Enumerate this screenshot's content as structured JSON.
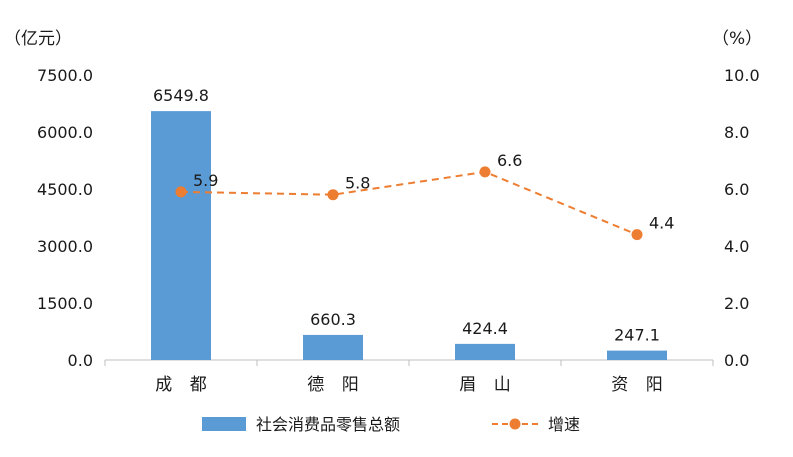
{
  "chart_data": {
    "type": "bar+line",
    "categories": [
      "成 都",
      "德 阳",
      "眉 山",
      "资 阳"
    ],
    "series": [
      {
        "name": "社会消费品零售总额",
        "type": "bar",
        "axis": "left",
        "values": [
          6549.8,
          660.3,
          424.4,
          247.1
        ],
        "data_labels": [
          "6549.8",
          "660.3",
          "424.4",
          "247.1"
        ],
        "color": "#5b9bd5"
      },
      {
        "name": "增速",
        "type": "line",
        "axis": "right",
        "style": "dashed",
        "values": [
          5.9,
          5.8,
          6.6,
          4.4
        ],
        "data_labels": [
          "5.9",
          "5.8",
          "6.6",
          "4.4"
        ],
        "color": "#ed7d31"
      }
    ],
    "y_left": {
      "unit": "（亿元）",
      "range": [
        0,
        7500
      ],
      "ticks": [
        0,
        1500,
        3000,
        4500,
        6000,
        7500
      ],
      "tick_labels": [
        "0.0",
        "1500.0",
        "3000.0",
        "4500.0",
        "6000.0",
        "7500.0"
      ]
    },
    "y_right": {
      "unit": "（%）",
      "range": [
        0,
        10
      ],
      "ticks": [
        0,
        2,
        4,
        6,
        8,
        10
      ],
      "tick_labels": [
        "0.0",
        "2.0",
        "4.0",
        "6.0",
        "8.0",
        "10.0"
      ]
    },
    "grid": false,
    "legend_position": "bottom-center"
  }
}
